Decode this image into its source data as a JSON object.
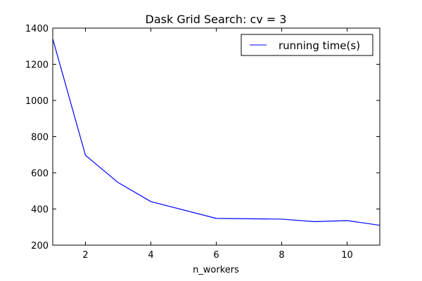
{
  "chart_data": {
    "type": "line",
    "title": "Dask Grid Search: cv = 3",
    "xlabel": "n_workers",
    "ylabel": "",
    "xlim": [
      1,
      11
    ],
    "ylim": [
      200,
      1400
    ],
    "x_ticks": [
      2,
      4,
      6,
      8,
      10
    ],
    "y_ticks": [
      200,
      400,
      600,
      800,
      1000,
      1200,
      1400
    ],
    "grid": false,
    "legend_position": "top-right",
    "series": [
      {
        "name": "running time(s)",
        "color": "#0000ff",
        "x": [
          1,
          2,
          3,
          4,
          6,
          8,
          9,
          10,
          11
        ],
        "y": [
          1340,
          697,
          546,
          441,
          348,
          344,
          330,
          336,
          310
        ]
      }
    ]
  }
}
